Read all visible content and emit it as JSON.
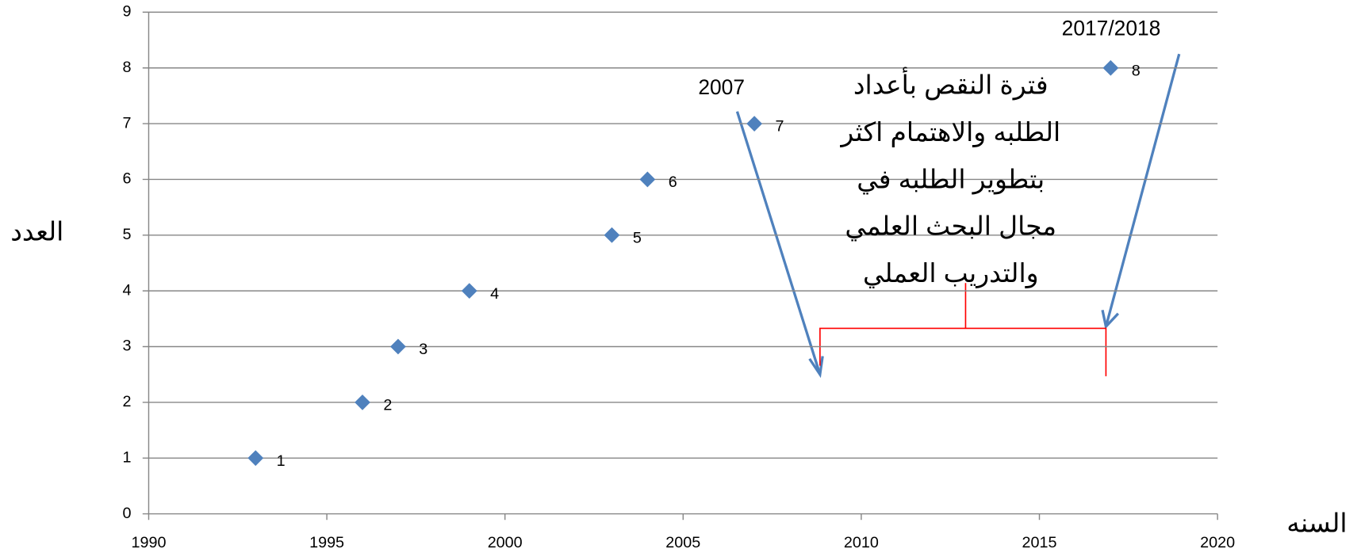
{
  "chart_data": {
    "type": "scatter",
    "x_label": "السنه",
    "y_label": "العدد",
    "x": [
      1993,
      1996,
      1997,
      1999,
      2003,
      2004,
      2007,
      2017
    ],
    "values": [
      1,
      2,
      3,
      4,
      5,
      6,
      7,
      8
    ],
    "color": "#4f81bd",
    "marker": "diamond",
    "xlim": [
      1990,
      2020
    ],
    "xticks": [
      1990,
      1995,
      2000,
      2005,
      2010,
      2015,
      2020
    ],
    "ylim": [
      0,
      9
    ],
    "yticks": [
      0,
      1,
      2,
      3,
      4,
      5,
      6,
      7,
      8,
      9
    ],
    "grid": true,
    "annotations": {
      "start": "2007",
      "end": "2017/2018",
      "note": [
        "فترة النقص بأعداد",
        "الطلبه والاهتمام اكثر",
        "بتطوير الطلبه في",
        "مجال البحث العلمي",
        "والتدريب العملي"
      ]
    }
  }
}
